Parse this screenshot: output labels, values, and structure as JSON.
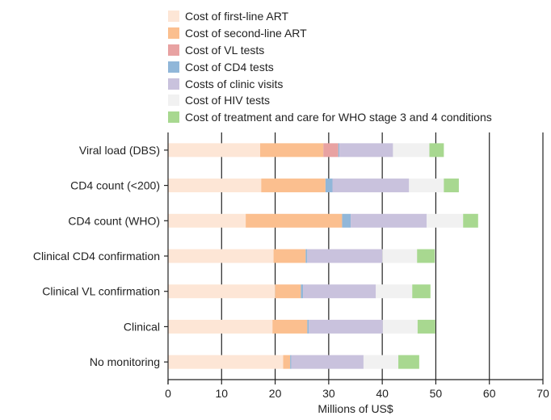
{
  "chart_data": {
    "type": "bar",
    "orientation": "horizontal",
    "stacked": true,
    "title": "",
    "xlabel": "Millions of US$",
    "ylabel": "",
    "xlim": [
      0,
      70
    ],
    "xticks": [
      0,
      10,
      20,
      30,
      40,
      50,
      60,
      70
    ],
    "grid": true,
    "legend_position": "top",
    "categories": [
      "Viral load (DBS)",
      "CD4 count (<200)",
      "CD4 count (WHO)",
      "Clinical CD4 confirmation",
      "Clinical VL confirmation",
      "Clinical",
      "No monitoring"
    ],
    "series": [
      {
        "name": "Cost of first-line ART",
        "color": "#fde6d6",
        "values": [
          17.2,
          17.4,
          14.5,
          19.7,
          20.0,
          19.5,
          21.5
        ]
      },
      {
        "name": "Cost of second-line ART",
        "color": "#fbbf8f",
        "values": [
          11.8,
          12.0,
          18.0,
          6.0,
          4.8,
          6.5,
          1.3
        ]
      },
      {
        "name": "Cost of VL tests",
        "color": "#e8a2a2",
        "values": [
          2.8,
          0,
          0,
          0,
          0,
          0,
          0
        ]
      },
      {
        "name": "Cost of CD4 tests",
        "color": "#91b7d9",
        "values": [
          0.2,
          1.3,
          1.6,
          0.3,
          0.4,
          0.3,
          0.2
        ]
      },
      {
        "name": "Costs of clinic visits",
        "color": "#c9c2dd",
        "values": [
          10.0,
          14.3,
          14.2,
          14.0,
          13.6,
          13.8,
          13.5
        ]
      },
      {
        "name": "Cost of HIV tests",
        "color": "#f1f1f1",
        "values": [
          6.8,
          6.5,
          6.8,
          6.5,
          6.8,
          6.5,
          6.5
        ]
      },
      {
        "name": "Cost of treatment and care for WHO stage 3 and 4 conditions",
        "color": "#a8d890",
        "values": [
          2.7,
          2.8,
          2.8,
          3.3,
          3.4,
          3.3,
          3.9
        ]
      }
    ]
  }
}
